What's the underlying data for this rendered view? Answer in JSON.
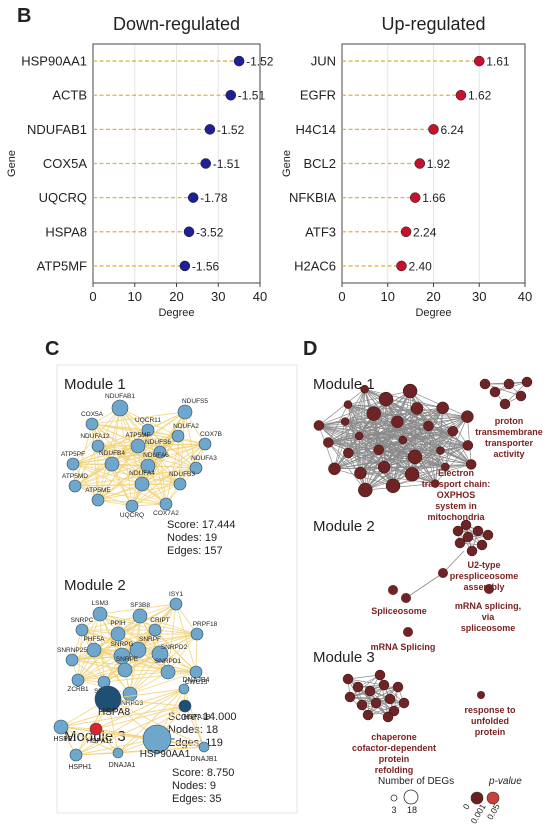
{
  "panels": {
    "B": "B",
    "C": "C",
    "D": "D"
  },
  "chart_data": [
    {
      "type": "scatter",
      "variant": "lollipop",
      "title": "Down-regulated",
      "xlabel": "Degree",
      "ylabel": "Gene",
      "xlim": [
        0,
        40
      ],
      "xticks": [
        0,
        10,
        20,
        30,
        40
      ],
      "grid": "vertical",
      "point_color": "#1f1f9c",
      "categories": [
        "HSP90AA1",
        "ACTB",
        "NDUFAB1",
        "COX5A",
        "UQCRQ",
        "HSPA8",
        "ATP5MF"
      ],
      "values": [
        35,
        33,
        28,
        27,
        24,
        23,
        22
      ],
      "labels": [
        "-1.52",
        "-1.51",
        "-1.52",
        "-1.51",
        "-1.78",
        "-3.52",
        "-1.56"
      ]
    },
    {
      "type": "scatter",
      "variant": "lollipop",
      "title": "Up-regulated",
      "xlabel": "Degree",
      "ylabel": "Gene",
      "xlim": [
        0,
        40
      ],
      "xticks": [
        0,
        10,
        20,
        30,
        40
      ],
      "grid": "vertical",
      "point_color": "#c8102e",
      "categories": [
        "JUN",
        "EGFR",
        "H4C14",
        "BCL2",
        "NFKBIA",
        "ATF3",
        "H2AC6"
      ],
      "values": [
        30,
        26,
        20,
        17,
        16,
        14,
        13
      ],
      "labels": [
        "1.61",
        "1.62",
        "6.24",
        "1.92",
        "1.66",
        "2.24",
        "2.40"
      ]
    }
  ],
  "network_c": {
    "modules": [
      {
        "title": "Module 1",
        "stats": [
          "Score: 17.444",
          "Nodes: 19",
          "Edges: 157"
        ],
        "nodes": [
          "NDUFAB1",
          "COX5A",
          "UQCR11",
          "NDUFS5",
          "ATP5MF",
          "NDUFA2",
          "NDUFA12",
          "NDUFS6",
          "COX7B",
          "ATP5PF",
          "NDUFA6",
          "NDUFB4",
          "NDUFA3",
          "ATP5MD",
          "NDUFA4",
          "NDUFB3",
          "ATP5ME",
          "UQCRQ",
          "COX7A2"
        ]
      },
      {
        "title": "Module 2",
        "stats": [
          "Score: 14.000",
          "Nodes: 18",
          "Edges: 119"
        ],
        "nodes": [
          "LSM3",
          "SF3B8",
          "ISY1",
          "SNRPC",
          "CRIPT",
          "PPIH",
          "PRPF18",
          "SNRPF",
          "SNRNP25",
          "PHF5A",
          "SNRPG",
          "SNRPD2",
          "SNRPE",
          "SNRPD1",
          "CWC15",
          "ZCRB1",
          "SF3B5",
          "SNRPD3"
        ]
      },
      {
        "title": "Module 3",
        "stats": [
          "Score: 8.750",
          "Nodes: 9",
          "Edges: 35"
        ],
        "nodes": [
          "DNAJB4",
          "HSPA8",
          "HSPA1B",
          "HSPE1",
          "HSPA1L",
          "HSP90AA1",
          "HSPH1",
          "DNAJA1",
          "DNAJB1"
        ]
      }
    ]
  },
  "network_d": {
    "modules": [
      {
        "title": "Module 1",
        "terms": [
          [
            "Electron",
            "transport chain:",
            "OXPHOS",
            "system in",
            "mitochondria"
          ],
          [
            "proton",
            "transmembrane",
            "transporter",
            "activity"
          ]
        ]
      },
      {
        "title": "Module 2",
        "terms": [
          [
            "U2-type",
            "prespliceosome",
            "assembly"
          ],
          [
            "Spliceosome"
          ],
          [
            "mRNA Splicing"
          ],
          [
            "mRNA splicing,",
            "via",
            "spliceosome"
          ]
        ]
      },
      {
        "title": "Module 3",
        "terms": [
          [
            "response to",
            "unfolded",
            "protein"
          ],
          [
            "chaperone",
            "cofactor-dependent",
            "protein",
            "refolding"
          ]
        ]
      }
    ],
    "legend": {
      "size_title": "Number of DEGs",
      "size_values": [
        "3",
        "18"
      ],
      "color_title": "p-value",
      "color_values": [
        "0",
        "0.001",
        "0.05"
      ],
      "colors": [
        "#6b1f1f",
        "#c8403a"
      ]
    }
  },
  "colors": {
    "node_blue": "#6fa6cc",
    "node_dark": "#1f4f73",
    "node_red": "#d9262c",
    "edge_yellow": "#f2d27a",
    "term_brown": "#6e2424",
    "term_text": "#7a1f1f",
    "lollipop_line": "#e3b33f"
  }
}
